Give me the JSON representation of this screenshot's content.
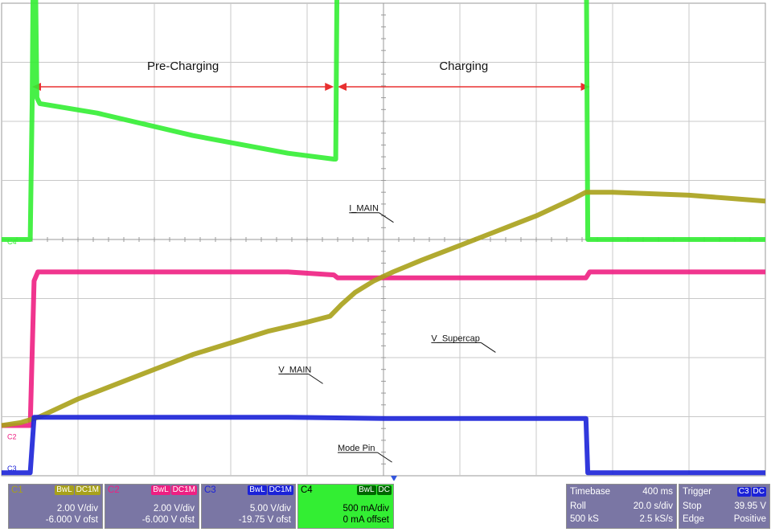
{
  "chart_data": {
    "type": "line",
    "title": "",
    "xlabel": "",
    "ylabel": "",
    "grid": true,
    "grid_divisions": {
      "x": 10,
      "y": 8
    },
    "x_unit": "s",
    "xlim": [
      0,
      4.0
    ],
    "regions": [
      {
        "label": "Pre-Charging",
        "x_start": 0.16,
        "x_end": 1.74
      },
      {
        "label": "Charging",
        "x_start": 1.76,
        "x_end": 3.08
      }
    ],
    "annotations": [
      {
        "text": "I_MAIN",
        "x": 1.82,
        "y_div": 4.48
      },
      {
        "text": "V_MAIN",
        "x": 1.45,
        "y_div": 1.75
      },
      {
        "text": "V_Supercap",
        "x": 2.25,
        "y_div": 2.28
      },
      {
        "text": "Mode Pin",
        "x": 1.76,
        "y_div": 0.42
      }
    ],
    "series": [
      {
        "name": "I_MAIN",
        "channel": "C4",
        "color": "#33ee33",
        "unit": "mA",
        "volts_per_div": 500,
        "offset": 0,
        "x": [
          0,
          0.15,
          0.16,
          0.17,
          0.185,
          0.2,
          0.5,
          1.0,
          1.5,
          1.74,
          1.75,
          1.76,
          1.8,
          1.9,
          2.0,
          2.02,
          2.1,
          2.5,
          3.0,
          3.06,
          3.07,
          3.1,
          3.5,
          4.0
        ],
        "y": [
          0,
          0,
          1150,
          3200,
          1200,
          1150,
          1070,
          880,
          730,
          680,
          680,
          2950,
          3080,
          3050,
          3050,
          2800,
          3000,
          3000,
          3000,
          3000,
          0,
          0,
          0,
          0
        ]
      },
      {
        "name": "V_MAIN",
        "channel": "C2",
        "color": "#ee1f82",
        "unit": "V",
        "volts_per_div": 2.0,
        "offset": -6.0,
        "x": [
          0,
          0.15,
          0.17,
          0.19,
          0.5,
          1.0,
          1.5,
          1.74,
          1.76,
          2.0,
          2.5,
          3.0,
          3.06,
          3.08,
          3.5,
          4.0
        ],
        "y": [
          -0.3,
          -0.3,
          4.6,
          4.9,
          4.9,
          4.9,
          4.9,
          4.8,
          4.7,
          4.7,
          4.7,
          4.7,
          4.7,
          4.9,
          4.9,
          4.9
        ]
      },
      {
        "name": "V_Supercap",
        "channel": "C1",
        "color": "#a8a11a",
        "unit": "V",
        "volts_per_div": 2.0,
        "offset": -6.0,
        "x": [
          0,
          0.1,
          0.2,
          0.4,
          0.6,
          0.8,
          1.0,
          1.2,
          1.4,
          1.6,
          1.72,
          1.78,
          1.85,
          1.95,
          2.05,
          2.2,
          2.4,
          2.6,
          2.8,
          3.0,
          3.06,
          3.2,
          3.6,
          4.0
        ],
        "y": [
          -0.3,
          -0.2,
          0.0,
          0.6,
          1.1,
          1.6,
          2.1,
          2.5,
          2.9,
          3.2,
          3.4,
          3.8,
          4.2,
          4.6,
          4.9,
          5.3,
          5.8,
          6.3,
          6.8,
          7.4,
          7.6,
          7.6,
          7.5,
          7.3
        ]
      },
      {
        "name": "Mode Pin",
        "channel": "C3",
        "color": "#1b22d8",
        "unit": "V",
        "volts_per_div": 5.0,
        "offset": -19.75,
        "x": [
          0,
          0.15,
          0.17,
          0.5,
          1.0,
          1.5,
          2.0,
          2.5,
          3.0,
          3.06,
          3.07,
          3.5,
          4.0
        ],
        "y": [
          0,
          0,
          4.7,
          4.7,
          4.7,
          4.7,
          4.6,
          4.6,
          4.6,
          4.6,
          0,
          0,
          0
        ]
      }
    ],
    "channel_labels": [
      {
        "text": "C4",
        "color": "#33ee33",
        "y_div": 3.92
      },
      {
        "text": "C2",
        "color": "#ee1f82",
        "y_div": 0.62
      },
      {
        "text": "C3",
        "color": "#1b22d8",
        "y_div": 0.08
      }
    ]
  },
  "channels": [
    {
      "name": "C1",
      "badges": [
        "BwL",
        "DC1M"
      ],
      "scale": "2.00 V/div",
      "offset": "-6.000 V ofst",
      "color": "#a8a11a",
      "panel_bg": "#7a76a4"
    },
    {
      "name": "C2",
      "badges": [
        "BwL",
        "DC1M"
      ],
      "scale": "2.00 V/div",
      "offset": "-6.000 V ofst",
      "color": "#ee1f82",
      "panel_bg": "#7a76a4"
    },
    {
      "name": "C3",
      "badges": [
        "BwL",
        "DC1M"
      ],
      "scale": "5.00 V/div",
      "offset": "-19.75 V ofst",
      "color": "#1b22d8",
      "panel_bg": "#7a76a4"
    },
    {
      "name": "C4",
      "badges": [
        "BwL",
        "DC"
      ],
      "scale": "500 mA/div",
      "offset": "0 mA offset",
      "color": "#33ee33",
      "panel_bg": "#33ee33"
    }
  ],
  "timebase": {
    "label": "Timebase",
    "value": "400 ms",
    "mode": "Roll",
    "rate": "20.0 s/div",
    "samples": "500 kS",
    "sample_rate": "2.5 kS/s"
  },
  "trigger": {
    "label": "Trigger",
    "badges": [
      "C3",
      "DC"
    ],
    "state": "Stop",
    "level": "39.95 V",
    "type": "Edge",
    "slope": "Positive"
  }
}
